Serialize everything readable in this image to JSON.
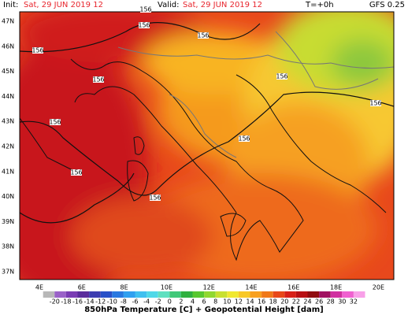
{
  "header": {
    "init_label": "Init:",
    "init_time": "Sat, 29 JUN 2019   12",
    "valid_label": "Valid:",
    "valid_time": "Sat, 29 JUN 2019   12",
    "step": "T=+0h",
    "model": "GFS 0.25"
  },
  "map": {
    "lat_labels": [
      "47N",
      "46N",
      "45N",
      "44N",
      "43N",
      "42N",
      "41N",
      "40N",
      "39N",
      "38N",
      "37N"
    ],
    "lon_labels": [
      "4E",
      "6E",
      "8E",
      "10E",
      "12E",
      "14E",
      "16E",
      "18E",
      "20E"
    ],
    "contour_labels": [
      "156",
      "156",
      "156",
      "156",
      "156",
      "156",
      "156",
      "156",
      "156",
      "156",
      "156"
    ]
  },
  "colorbar": {
    "labels": [
      -20,
      -18,
      -16,
      -14,
      -12,
      -10,
      -8,
      -6,
      -4,
      -2,
      0,
      2,
      4,
      6,
      8,
      10,
      12,
      14,
      16,
      18,
      20,
      22,
      24,
      26,
      28,
      30,
      32
    ]
  },
  "footer": {
    "title": "850hPa Temperature [C] + Geopotential Height [dam]"
  }
}
